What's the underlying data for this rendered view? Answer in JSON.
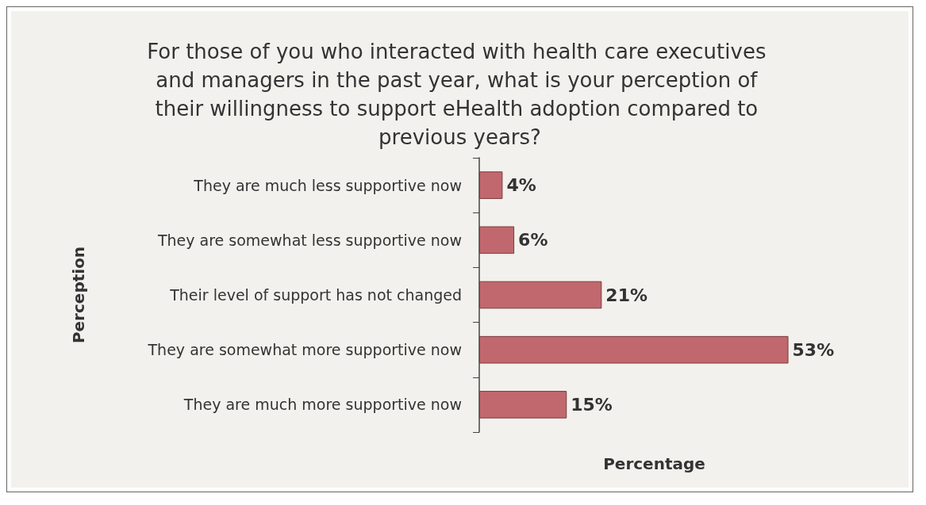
{
  "chart_data": {
    "type": "bar",
    "orientation": "horizontal",
    "title": "For those of you who interacted with health care executives and managers in the past year, what is your perception of their willingness to support eHealth adoption compared to previous years?",
    "xlabel": "Percentage",
    "ylabel": "Perception",
    "categories": [
      "They are much less supportive now",
      "They are somewhat less supportive now",
      "Their level of support has not changed",
      "They are somewhat more supportive now",
      "They are much more supportive now"
    ],
    "values": [
      4,
      6,
      21,
      53,
      15
    ],
    "value_labels": [
      "4%",
      "6%",
      "21%",
      "53%",
      "15%"
    ],
    "color": "#c0686e",
    "grid": false
  }
}
